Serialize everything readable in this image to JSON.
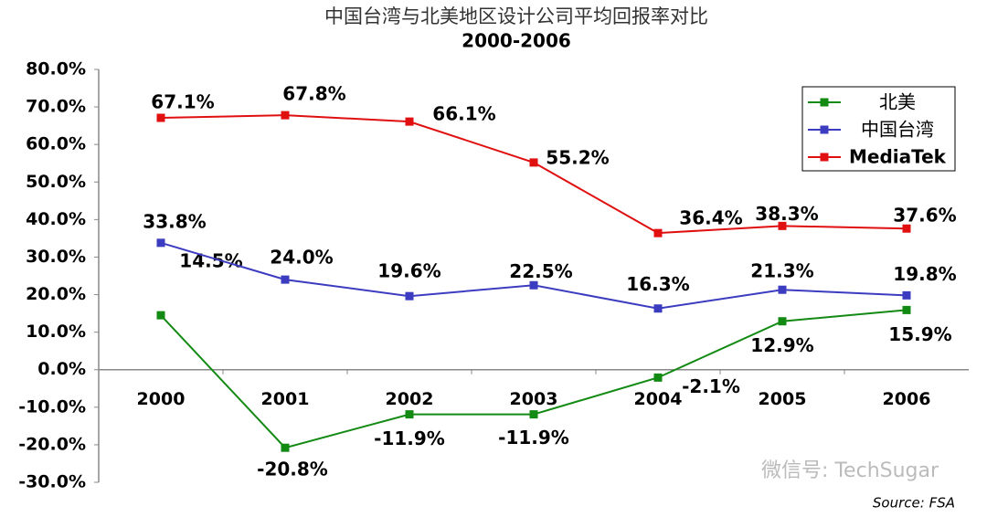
{
  "chart_data": {
    "type": "line",
    "title": "中国台湾与北美地区设计公司平均回报率对比",
    "subtitle": "2000-2006",
    "source": "Source: FSA",
    "watermark": "微信号: TechSugar",
    "categories": [
      "2000",
      "2001",
      "2002",
      "2003",
      "2004",
      "2005",
      "2006"
    ],
    "ylim": [
      -30,
      80
    ],
    "yticks": [
      {
        "value": -30,
        "label": "-30.0%"
      },
      {
        "value": -20,
        "label": "-20.0%"
      },
      {
        "value": -10,
        "label": "-10.0%"
      },
      {
        "value": 0,
        "label": "0.0%"
      },
      {
        "value": 10,
        "label": "10.0%"
      },
      {
        "value": 20,
        "label": "20.0%"
      },
      {
        "value": 30,
        "label": "30.0%"
      },
      {
        "value": 40,
        "label": "40.0%"
      },
      {
        "value": 50,
        "label": "50.0%"
      },
      {
        "value": 60,
        "label": "60.0%"
      },
      {
        "value": 70,
        "label": "70.0%"
      },
      {
        "value": 80,
        "label": "80.0%"
      }
    ],
    "grid": false,
    "legend": "top-right",
    "series": [
      {
        "name": "北美",
        "color": "#138a13",
        "values": [
          14.5,
          -20.8,
          -11.9,
          -11.9,
          -2.1,
          12.9,
          15.9
        ],
        "value_labels": [
          "14.5%",
          "-20.8%",
          "-11.9%",
          "-11.9%",
          "-2.1%",
          "12.9%",
          "15.9%"
        ]
      },
      {
        "name": "中国台湾",
        "color": "#3c3cc0",
        "values": [
          33.8,
          24.0,
          19.6,
          22.5,
          16.3,
          21.3,
          19.8
        ],
        "value_labels": [
          "33.8%",
          "24.0%",
          "19.6%",
          "22.5%",
          "16.3%",
          "21.3%",
          "19.8%"
        ]
      },
      {
        "name": "MediaTek",
        "color": "#e01010",
        "values": [
          67.1,
          67.8,
          66.1,
          55.2,
          36.4,
          38.3,
          37.6
        ],
        "value_labels": [
          "67.1%",
          "67.8%",
          "66.1%",
          "55.2%",
          "36.4%",
          "38.3%",
          "37.6%"
        ]
      }
    ]
  }
}
